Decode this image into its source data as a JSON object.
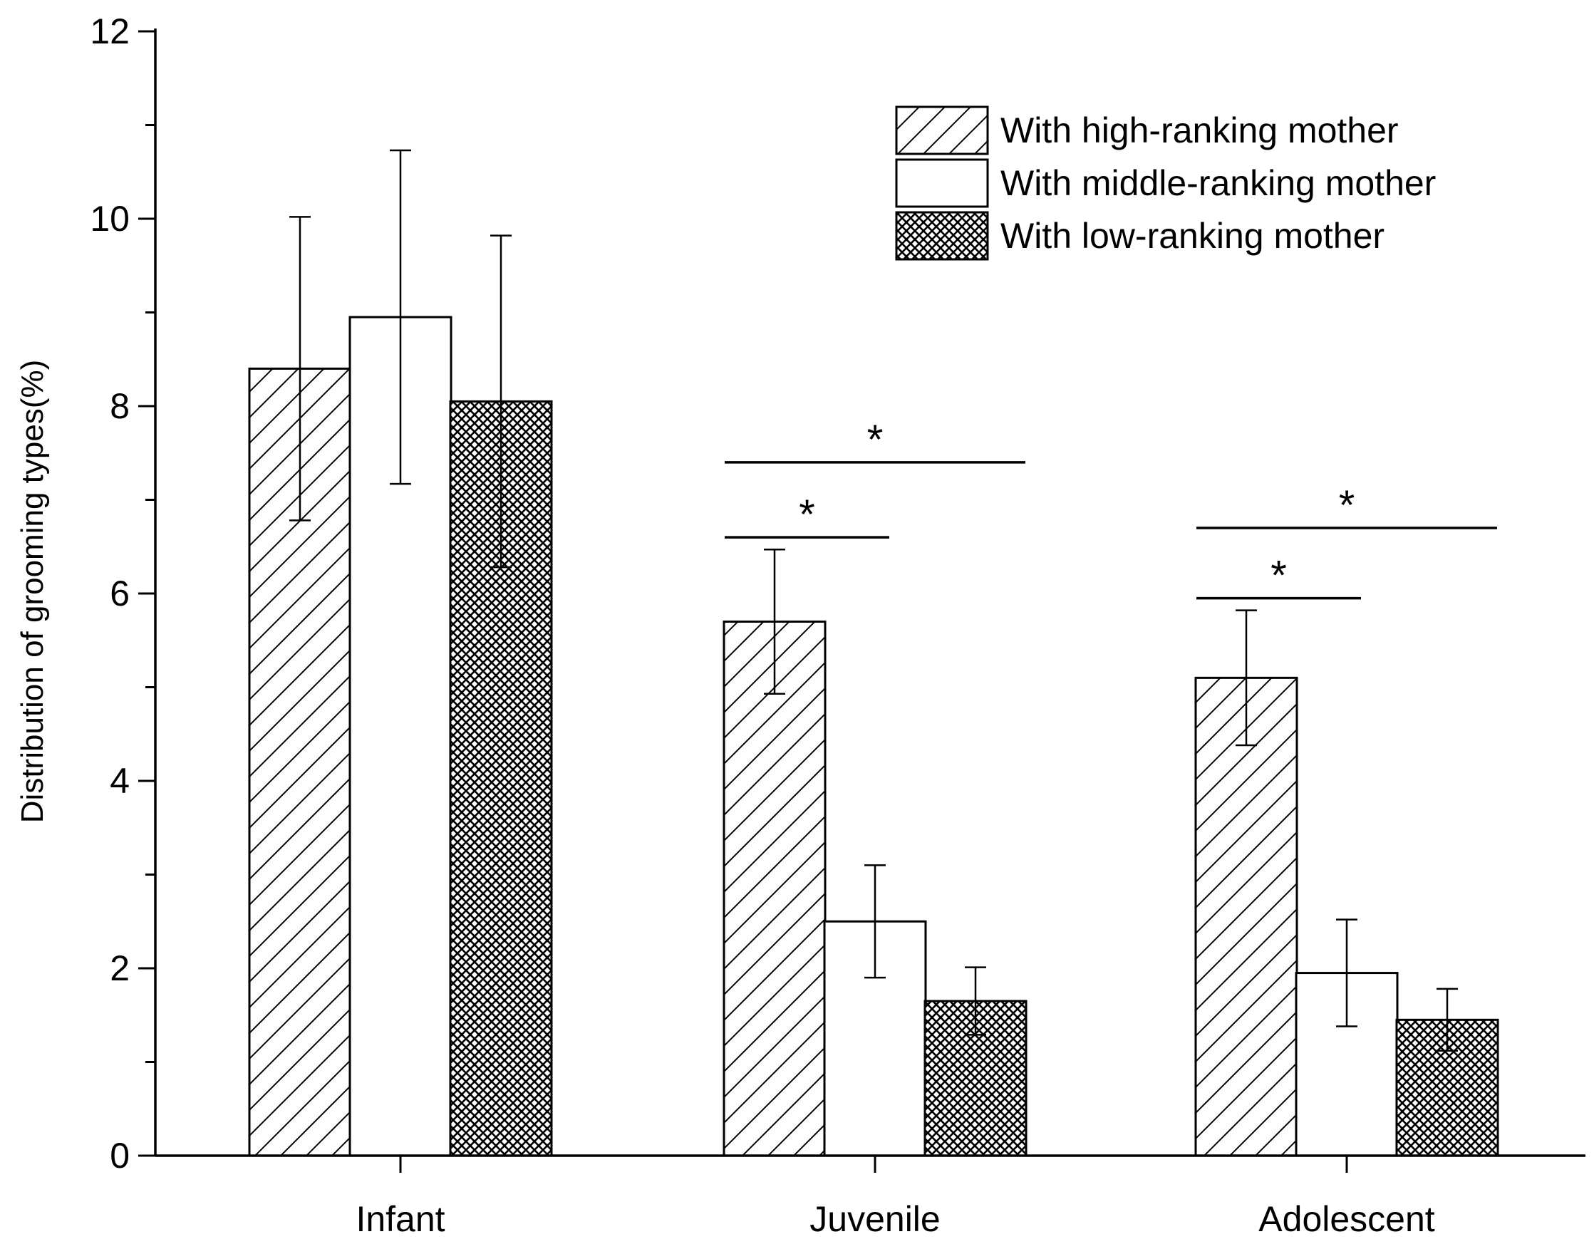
{
  "chart_data": {
    "type": "bar",
    "title": "",
    "xlabel": "",
    "ylabel": "Distribution of grooming types(%)",
    "ylim": [
      0,
      12
    ],
    "yticks": [
      0,
      2,
      4,
      6,
      8,
      10,
      12
    ],
    "yticks_minor_step": 1,
    "categories": [
      "Infant",
      "Juvenile",
      "Adolescent"
    ],
    "legend_position": "top-right",
    "grid": false,
    "series": [
      {
        "name": "With high-ranking mother",
        "pattern": "hatch",
        "values": [
          8.4,
          5.7,
          5.1
        ],
        "errors": [
          1.62,
          0.77,
          0.72
        ]
      },
      {
        "name": "With middle-ranking mother",
        "pattern": "plain",
        "values": [
          8.95,
          2.5,
          1.95
        ],
        "errors": [
          1.78,
          0.6,
          0.57
        ]
      },
      {
        "name": "With low-ranking mother",
        "pattern": "crosshatch",
        "values": [
          8.05,
          1.65,
          1.45
        ],
        "errors": [
          1.77,
          0.36,
          0.33
        ]
      }
    ],
    "significance": [
      {
        "category": "Juvenile",
        "from_series": 0,
        "to_series": 2,
        "level": 7.4,
        "label": "*"
      },
      {
        "category": "Juvenile",
        "from_series": 0,
        "to_series": 1,
        "level": 6.6,
        "label": "*"
      },
      {
        "category": "Adolescent",
        "from_series": 0,
        "to_series": 2,
        "level": 6.7,
        "label": "*"
      },
      {
        "category": "Adolescent",
        "from_series": 0,
        "to_series": 1,
        "level": 5.95,
        "label": "*"
      }
    ]
  }
}
